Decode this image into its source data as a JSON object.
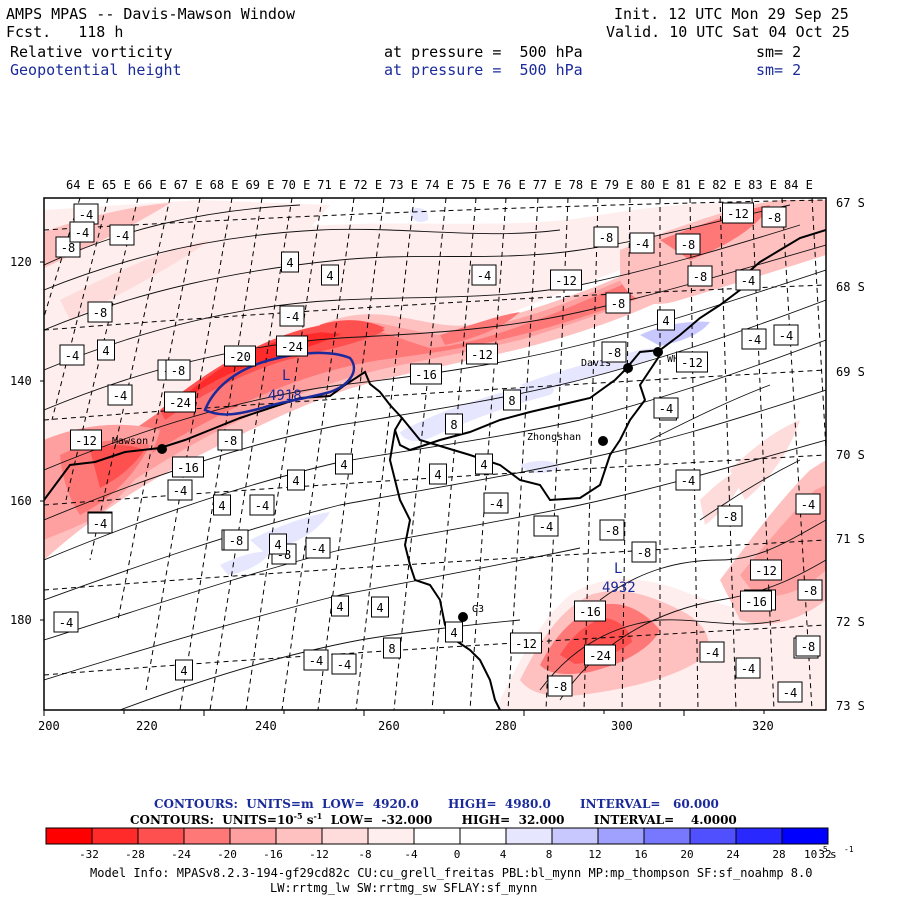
{
  "header": {
    "title": "AMPS MPAS -- Davis-Mawson Window",
    "fcst": "Fcst.   118 h",
    "init": "Init. 12 UTC Mon 29 Sep 25",
    "valid": "Valid. 10 UTC Sat 04 Oct 25",
    "field1": {
      "name": "Relative vorticity",
      "level": "at pressure =  500 hPa",
      "sm": "sm= 2"
    },
    "field2": {
      "name": "Geopotential height",
      "level": "at pressure =  500 hPa",
      "sm": "sm= 2"
    }
  },
  "map": {
    "lon_labels": [
      "64 E",
      "65 E",
      "66 E",
      "67 E",
      "68 E",
      "69 E",
      "70 E",
      "71 E",
      "72 E",
      "73 E",
      "74 E",
      "75 E",
      "76 E",
      "77 E",
      "78 E",
      "79 E",
      "80 E",
      "81 E",
      "82 E",
      "83 E",
      "84 E"
    ],
    "lat_labels": [
      "67 S",
      "68 S",
      "69 S",
      "70 S",
      "71 S",
      "72 S",
      "73 S"
    ],
    "x_ticks": [
      "200",
      "220",
      "240",
      "260",
      "280",
      "300",
      "320"
    ],
    "y_ticks": [
      "120",
      "140",
      "160",
      "180"
    ],
    "stations": [
      {
        "name": "Mawson"
      },
      {
        "name": "Davis"
      },
      {
        "name": "WHP"
      },
      {
        "name": "Zhongshan"
      },
      {
        "name": "G3"
      }
    ],
    "lows": [
      {
        "symbol": "L",
        "value": "4918"
      },
      {
        "symbol": "L",
        "value": "4932"
      }
    ],
    "contour_labels": [
      "-4",
      "-8",
      "-4",
      "-8",
      "-4",
      "-4",
      "4",
      "4",
      "4",
      "-8",
      "-8",
      "-4",
      "-4",
      "-8",
      "-4",
      "4",
      "-4",
      "-12",
      "-8",
      "-20",
      "-24",
      "-16",
      "-12",
      "-8",
      "-4",
      "-24",
      "-12",
      "-16",
      "-12",
      "-8",
      "-12",
      "-8",
      "-4",
      "4",
      "-4",
      "-8",
      "-8",
      "-8",
      "-8",
      "-4",
      "4",
      "8",
      "8",
      "4",
      "4",
      "4",
      "4",
      "4",
      "4",
      "-4",
      "4",
      "4",
      "4",
      "-4",
      "-16",
      "-8",
      "-4",
      "8",
      "-4",
      "-4",
      "-8",
      "-8",
      "-8",
      "-4",
      "-4",
      "-8",
      "-12",
      "-16",
      "-8",
      "-8",
      "-24",
      "-16",
      "-12",
      "-8",
      "-4",
      "-4",
      "4",
      "-4",
      "-4",
      "-4",
      "4",
      "8",
      "-4",
      "-4",
      "-8"
    ]
  },
  "colorbar": {
    "contours1": "CONTOURS:  UNITS=m  LOW=  4920.0       HIGH=  4980.0       INTERVAL=   60.000",
    "contours2_prefix": "CONTOURS:  UNITS=10",
    "contours2_exp": "-5",
    "contours2_unit": " s",
    "contours2_unit_exp": "-1",
    "contours2_rest": "  LOW=  -32.000       HIGH=  32.000       INTERVAL=    4.0000",
    "ticks": [
      "-32",
      "-28",
      "-24",
      "-20",
      "-16",
      "-12",
      "-8",
      "-4",
      "0",
      "4",
      "8",
      "12",
      "16",
      "20",
      "24",
      "28",
      "32"
    ],
    "unit_label": "10",
    "unit_exp": "-5",
    "unit_s": " s",
    "unit_s_exp": "-1",
    "colors": [
      "#ff0000",
      "#ff2a2a",
      "#ff5050",
      "#ff7878",
      "#ffa0a0",
      "#ffc0c0",
      "#ffdcdc",
      "#ffeeee",
      "#ffffff",
      "#ffffff",
      "#e6e6ff",
      "#c8c8ff",
      "#a0a0ff",
      "#7878ff",
      "#5050ff",
      "#2828ff",
      "#0000ff"
    ]
  },
  "model_info": {
    "line1": "Model Info: MPASv8.2.3-194-gf29cd82c CU:cu_grell_freitas PBL:bl_mynn MP:mp_thompson SF:sf_noahmp 8.0",
    "line2": "LW:rrtmg_lw SW:rrtmg_sw SFLAY:sf_mynn"
  }
}
